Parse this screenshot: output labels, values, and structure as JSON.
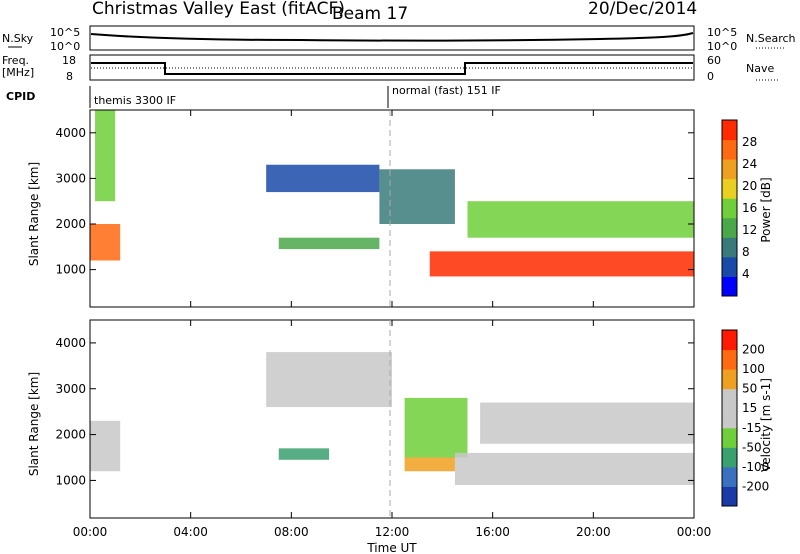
{
  "header": {
    "title": "Christmas Valley East (fitACF)",
    "beam": "Beam 17",
    "date": "20/Dec/2014"
  },
  "panels": {
    "nsky": {
      "label": "N.Sky",
      "ticks": [
        "10^5",
        "10^0"
      ],
      "right_ticks": [
        "10^5",
        "10^0"
      ],
      "right_label": "N.Search"
    },
    "freq": {
      "label_line1": "Freq.",
      "label_line2": "[MHz]",
      "ticks": [
        "18",
        "8"
      ],
      "right_ticks": [
        "60",
        "0"
      ],
      "right_label": "Nave"
    },
    "cpid": {
      "label": "CPID",
      "mode_left": "themis 3300 IF",
      "mode_right": "normal (fast) 151 IF"
    }
  },
  "axes": {
    "ylabel": "Slant Range [km]",
    "xlabel": "Time UT",
    "y_ticks": [
      "1000",
      "2000",
      "3000",
      "4000"
    ],
    "x_ticks": [
      "00:00",
      "04:00",
      "08:00",
      "12:00",
      "16:00",
      "20:00",
      "00:00"
    ]
  },
  "chart_data": [
    {
      "type": "heatmap",
      "name": "power",
      "xlim_hours": [
        0,
        24
      ],
      "ylim_km": [
        180,
        4500
      ],
      "colorbar": {
        "label": "Power [dB]",
        "ticks": [
          "28",
          "24",
          "20",
          "16",
          "12",
          "8",
          "4"
        ],
        "colors": [
          "#0000ff",
          "#1a4aa8",
          "#3a7a7a",
          "#4aa84a",
          "#6fcf3a",
          "#e9d020",
          "#f0a020",
          "#ff6a10",
          "#ff2a00"
        ]
      },
      "regions": [
        {
          "t0": 0.0,
          "t1": 1.2,
          "r0": 1200,
          "r1": 2000,
          "level": 7
        },
        {
          "t0": 0.2,
          "t1": 1.0,
          "r0": 2500,
          "r1": 4500,
          "level": 4
        },
        {
          "t0": 7.0,
          "t1": 11.5,
          "r0": 2700,
          "r1": 3300,
          "level": 1
        },
        {
          "t0": 7.5,
          "t1": 11.5,
          "r0": 1450,
          "r1": 1700,
          "level": 3
        },
        {
          "t0": 11.5,
          "t1": 14.5,
          "r0": 2000,
          "r1": 3200,
          "level": 2
        },
        {
          "t0": 13.5,
          "t1": 24.0,
          "r0": 850,
          "r1": 1400,
          "level": 8
        },
        {
          "t0": 15.0,
          "t1": 24.0,
          "r0": 1700,
          "r1": 2500,
          "level": 4
        }
      ]
    },
    {
      "type": "heatmap",
      "name": "velocity",
      "xlim_hours": [
        0,
        24
      ],
      "ylim_km": [
        180,
        4500
      ],
      "colorbar": {
        "label": "Velocity [m s-1]",
        "ticks": [
          "200",
          "100",
          "50",
          "15",
          "-15",
          "-50",
          "-100",
          "-200"
        ],
        "colors": [
          "#1a3aa8",
          "#3a70c0",
          "#3aa070",
          "#6fcf3a",
          "#c8c8c8",
          "#c8c8c8",
          "#f0a020",
          "#ff6a10",
          "#ff1a00"
        ]
      },
      "regions": [
        {
          "t0": 0.0,
          "t1": 1.2,
          "r0": 1200,
          "r1": 2300,
          "level": 4
        },
        {
          "t0": 7.0,
          "t1": 12.0,
          "r0": 2600,
          "r1": 3800,
          "level": 4
        },
        {
          "t0": 7.5,
          "t1": 9.5,
          "r0": 1450,
          "r1": 1700,
          "level": 2
        },
        {
          "t0": 12.5,
          "t1": 15.0,
          "r0": 1500,
          "r1": 2800,
          "level": 3
        },
        {
          "t0": 14.5,
          "t1": 24.0,
          "r0": 900,
          "r1": 1600,
          "level": 4
        },
        {
          "t0": 15.5,
          "t1": 24.0,
          "r0": 1800,
          "r1": 2700,
          "level": 4
        },
        {
          "t0": 12.5,
          "t1": 14.5,
          "r0": 1200,
          "r1": 1500,
          "level": 6
        }
      ]
    }
  ]
}
